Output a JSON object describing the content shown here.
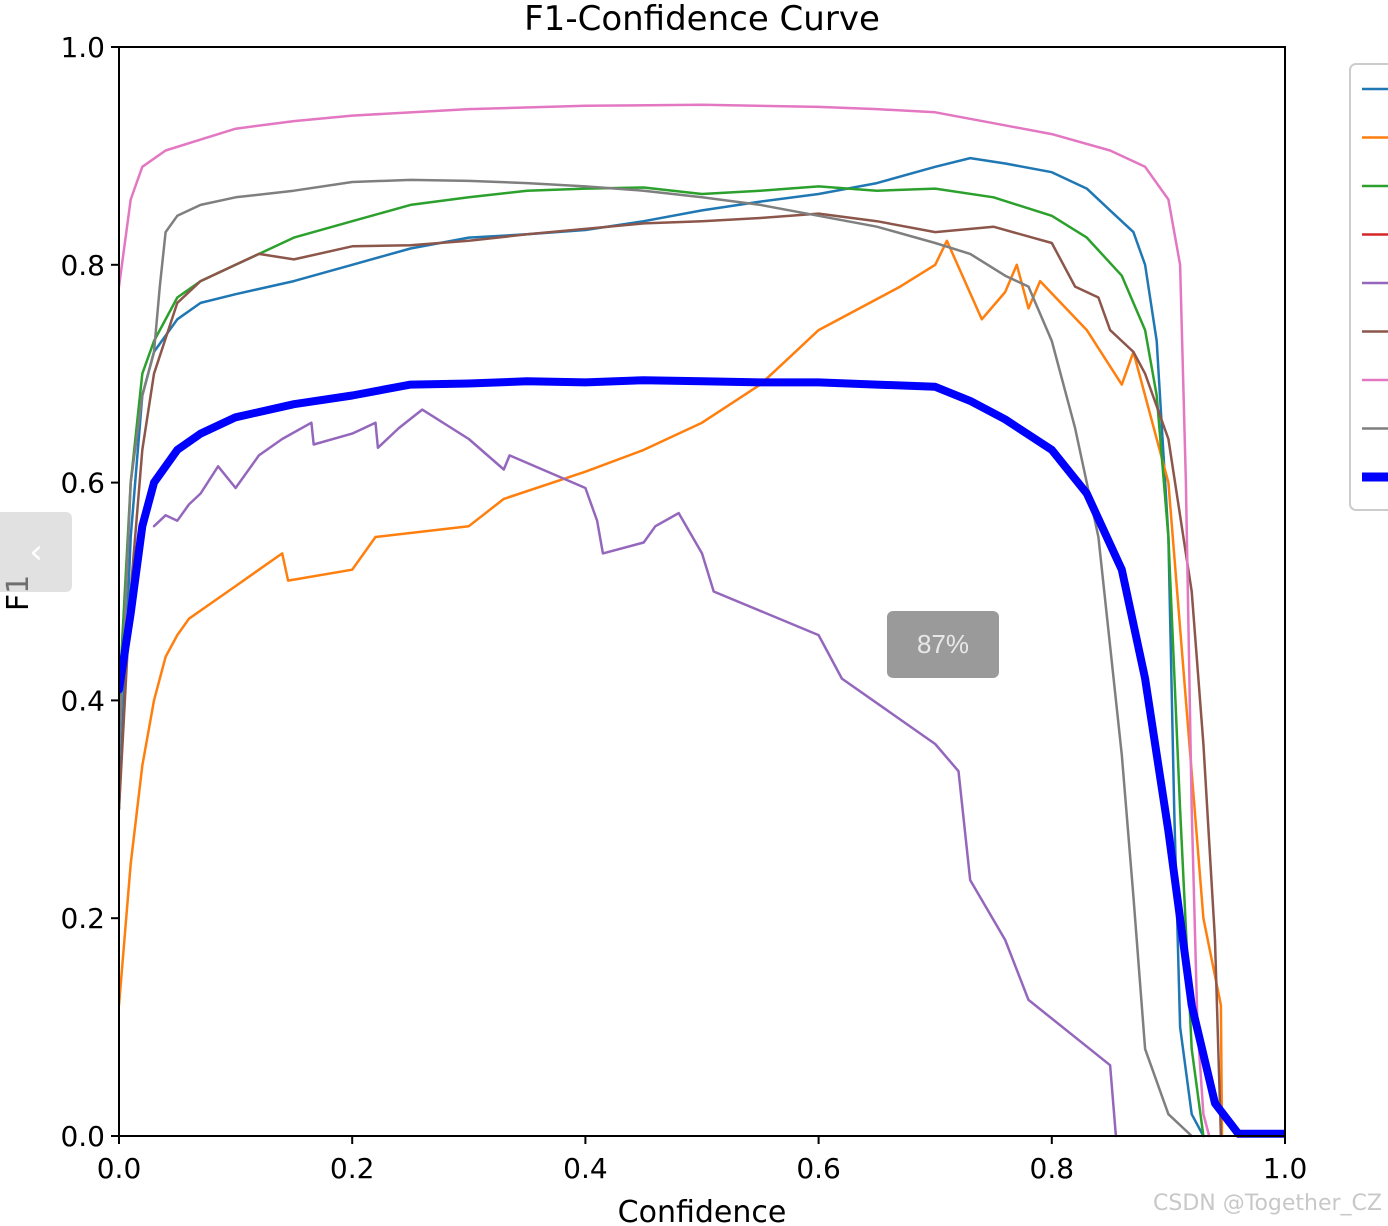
{
  "chart_data": {
    "type": "line",
    "title": "F1-Confidence Curve",
    "xlabel": "Confidence",
    "ylabel": "F1",
    "xlim": [
      0,
      1
    ],
    "ylim": [
      0,
      1
    ],
    "xticks": [
      "0.0",
      "0.2",
      "0.4",
      "0.6",
      "0.8",
      "1.0"
    ],
    "yticks": [
      "0.0",
      "0.2",
      "0.4",
      "0.6",
      "0.8",
      "1.0"
    ],
    "legend_position": "right, outside (partially cut off)",
    "series": [
      {
        "color": "#1f77b4",
        "width": 2.5,
        "points": [
          [
            0,
            0.3
          ],
          [
            0.01,
            0.55
          ],
          [
            0.02,
            0.68
          ],
          [
            0.03,
            0.72
          ],
          [
            0.05,
            0.75
          ],
          [
            0.07,
            0.765
          ],
          [
            0.1,
            0.773
          ],
          [
            0.15,
            0.785
          ],
          [
            0.2,
            0.8
          ],
          [
            0.25,
            0.815
          ],
          [
            0.3,
            0.825
          ],
          [
            0.35,
            0.828
          ],
          [
            0.4,
            0.832
          ],
          [
            0.45,
            0.84
          ],
          [
            0.5,
            0.85
          ],
          [
            0.55,
            0.858
          ],
          [
            0.6,
            0.865
          ],
          [
            0.65,
            0.875
          ],
          [
            0.7,
            0.89
          ],
          [
            0.73,
            0.898
          ],
          [
            0.76,
            0.893
          ],
          [
            0.8,
            0.885
          ],
          [
            0.83,
            0.87
          ],
          [
            0.85,
            0.85
          ],
          [
            0.87,
            0.83
          ],
          [
            0.88,
            0.8
          ],
          [
            0.89,
            0.73
          ],
          [
            0.9,
            0.55
          ],
          [
            0.905,
            0.3
          ],
          [
            0.91,
            0.1
          ],
          [
            0.92,
            0.02
          ],
          [
            0.93,
            0
          ]
        ]
      },
      {
        "color": "#ff7f0e",
        "width": 2.5,
        "points": [
          [
            0,
            0.12
          ],
          [
            0.01,
            0.25
          ],
          [
            0.02,
            0.34
          ],
          [
            0.03,
            0.4
          ],
          [
            0.04,
            0.44
          ],
          [
            0.05,
            0.46
          ],
          [
            0.06,
            0.475
          ],
          [
            0.08,
            0.49
          ],
          [
            0.1,
            0.505
          ],
          [
            0.12,
            0.52
          ],
          [
            0.14,
            0.535
          ],
          [
            0.145,
            0.51
          ],
          [
            0.2,
            0.52
          ],
          [
            0.22,
            0.55
          ],
          [
            0.3,
            0.56
          ],
          [
            0.33,
            0.585
          ],
          [
            0.4,
            0.61
          ],
          [
            0.45,
            0.63
          ],
          [
            0.5,
            0.655
          ],
          [
            0.55,
            0.69
          ],
          [
            0.58,
            0.72
          ],
          [
            0.6,
            0.74
          ],
          [
            0.67,
            0.78
          ],
          [
            0.7,
            0.8
          ],
          [
            0.71,
            0.822
          ],
          [
            0.74,
            0.75
          ],
          [
            0.76,
            0.775
          ],
          [
            0.77,
            0.8
          ],
          [
            0.78,
            0.76
          ],
          [
            0.79,
            0.785
          ],
          [
            0.83,
            0.74
          ],
          [
            0.86,
            0.69
          ],
          [
            0.87,
            0.72
          ],
          [
            0.9,
            0.6
          ],
          [
            0.93,
            0.2
          ],
          [
            0.945,
            0.12
          ],
          [
            0.946,
            0
          ]
        ]
      },
      {
        "color": "#2ca02c",
        "width": 2.5,
        "points": [
          [
            0,
            0.4
          ],
          [
            0.01,
            0.6
          ],
          [
            0.02,
            0.7
          ],
          [
            0.03,
            0.73
          ],
          [
            0.05,
            0.77
          ],
          [
            0.07,
            0.785
          ],
          [
            0.1,
            0.8
          ],
          [
            0.15,
            0.825
          ],
          [
            0.2,
            0.84
          ],
          [
            0.25,
            0.855
          ],
          [
            0.3,
            0.862
          ],
          [
            0.35,
            0.868
          ],
          [
            0.4,
            0.87
          ],
          [
            0.45,
            0.871
          ],
          [
            0.5,
            0.865
          ],
          [
            0.55,
            0.868
          ],
          [
            0.6,
            0.872
          ],
          [
            0.65,
            0.868
          ],
          [
            0.7,
            0.87
          ],
          [
            0.75,
            0.862
          ],
          [
            0.8,
            0.845
          ],
          [
            0.83,
            0.825
          ],
          [
            0.86,
            0.79
          ],
          [
            0.88,
            0.74
          ],
          [
            0.89,
            0.68
          ],
          [
            0.9,
            0.55
          ],
          [
            0.91,
            0.3
          ],
          [
            0.92,
            0.08
          ],
          [
            0.93,
            0
          ]
        ]
      },
      {
        "color": "#9467bd",
        "width": 2.5,
        "points": [
          [
            0.03,
            0.56
          ],
          [
            0.04,
            0.57
          ],
          [
            0.05,
            0.565
          ],
          [
            0.06,
            0.58
          ],
          [
            0.07,
            0.59
          ],
          [
            0.085,
            0.615
          ],
          [
            0.1,
            0.595
          ],
          [
            0.12,
            0.625
          ],
          [
            0.14,
            0.64
          ],
          [
            0.165,
            0.655
          ],
          [
            0.167,
            0.635
          ],
          [
            0.2,
            0.645
          ],
          [
            0.22,
            0.655
          ],
          [
            0.222,
            0.632
          ],
          [
            0.24,
            0.65
          ],
          [
            0.26,
            0.667
          ],
          [
            0.3,
            0.64
          ],
          [
            0.33,
            0.612
          ],
          [
            0.335,
            0.625
          ],
          [
            0.4,
            0.595
          ],
          [
            0.41,
            0.565
          ],
          [
            0.415,
            0.535
          ],
          [
            0.45,
            0.545
          ],
          [
            0.46,
            0.56
          ],
          [
            0.48,
            0.572
          ],
          [
            0.5,
            0.535
          ],
          [
            0.51,
            0.5
          ],
          [
            0.6,
            0.46
          ],
          [
            0.62,
            0.42
          ],
          [
            0.7,
            0.36
          ],
          [
            0.72,
            0.335
          ],
          [
            0.73,
            0.235
          ],
          [
            0.76,
            0.18
          ],
          [
            0.78,
            0.125
          ],
          [
            0.85,
            0.065
          ],
          [
            0.855,
            0
          ]
        ]
      },
      {
        "color": "#8c564b",
        "width": 2.5,
        "points": [
          [
            0,
            0.3
          ],
          [
            0.01,
            0.5
          ],
          [
            0.02,
            0.63
          ],
          [
            0.03,
            0.7
          ],
          [
            0.05,
            0.765
          ],
          [
            0.07,
            0.785
          ],
          [
            0.1,
            0.8
          ],
          [
            0.12,
            0.81
          ],
          [
            0.15,
            0.805
          ],
          [
            0.2,
            0.817
          ],
          [
            0.25,
            0.818
          ],
          [
            0.3,
            0.822
          ],
          [
            0.35,
            0.828
          ],
          [
            0.4,
            0.833
          ],
          [
            0.45,
            0.838
          ],
          [
            0.5,
            0.84
          ],
          [
            0.55,
            0.843
          ],
          [
            0.6,
            0.847
          ],
          [
            0.65,
            0.84
          ],
          [
            0.7,
            0.83
          ],
          [
            0.75,
            0.835
          ],
          [
            0.8,
            0.82
          ],
          [
            0.82,
            0.78
          ],
          [
            0.84,
            0.77
          ],
          [
            0.85,
            0.74
          ],
          [
            0.86,
            0.73
          ],
          [
            0.87,
            0.72
          ],
          [
            0.88,
            0.7
          ],
          [
            0.9,
            0.64
          ],
          [
            0.92,
            0.5
          ],
          [
            0.93,
            0.36
          ],
          [
            0.94,
            0.18
          ],
          [
            0.945,
            0
          ]
        ]
      },
      {
        "color": "#e377c2",
        "width": 2.5,
        "points": [
          [
            0,
            0.78
          ],
          [
            0.01,
            0.86
          ],
          [
            0.02,
            0.89
          ],
          [
            0.04,
            0.905
          ],
          [
            0.07,
            0.915
          ],
          [
            0.1,
            0.925
          ],
          [
            0.15,
            0.932
          ],
          [
            0.2,
            0.937
          ],
          [
            0.3,
            0.943
          ],
          [
            0.4,
            0.946
          ],
          [
            0.5,
            0.947
          ],
          [
            0.6,
            0.945
          ],
          [
            0.65,
            0.943
          ],
          [
            0.7,
            0.94
          ],
          [
            0.75,
            0.93
          ],
          [
            0.8,
            0.92
          ],
          [
            0.85,
            0.905
          ],
          [
            0.88,
            0.89
          ],
          [
            0.9,
            0.86
          ],
          [
            0.91,
            0.8
          ],
          [
            0.915,
            0.6
          ],
          [
            0.92,
            0.3
          ],
          [
            0.925,
            0.1
          ],
          [
            0.93,
            0.02
          ],
          [
            0.935,
            0
          ]
        ]
      },
      {
        "color": "#7f7f7f",
        "width": 2.5,
        "points": [
          [
            0,
            0.35
          ],
          [
            0.01,
            0.6
          ],
          [
            0.02,
            0.68
          ],
          [
            0.03,
            0.72
          ],
          [
            0.035,
            0.78
          ],
          [
            0.04,
            0.83
          ],
          [
            0.05,
            0.845
          ],
          [
            0.07,
            0.855
          ],
          [
            0.1,
            0.862
          ],
          [
            0.15,
            0.868
          ],
          [
            0.2,
            0.876
          ],
          [
            0.25,
            0.878
          ],
          [
            0.3,
            0.877
          ],
          [
            0.35,
            0.875
          ],
          [
            0.4,
            0.872
          ],
          [
            0.45,
            0.868
          ],
          [
            0.5,
            0.862
          ],
          [
            0.55,
            0.855
          ],
          [
            0.6,
            0.845
          ],
          [
            0.65,
            0.835
          ],
          [
            0.7,
            0.82
          ],
          [
            0.73,
            0.81
          ],
          [
            0.76,
            0.79
          ],
          [
            0.78,
            0.78
          ],
          [
            0.8,
            0.73
          ],
          [
            0.82,
            0.65
          ],
          [
            0.84,
            0.55
          ],
          [
            0.85,
            0.45
          ],
          [
            0.86,
            0.35
          ],
          [
            0.87,
            0.22
          ],
          [
            0.88,
            0.08
          ],
          [
            0.9,
            0.02
          ],
          [
            0.92,
            0
          ]
        ]
      },
      {
        "color": "#0000ff",
        "width": 8,
        "points": [
          [
            0,
            0.41
          ],
          [
            0.01,
            0.48
          ],
          [
            0.02,
            0.56
          ],
          [
            0.03,
            0.6
          ],
          [
            0.05,
            0.63
          ],
          [
            0.07,
            0.645
          ],
          [
            0.1,
            0.66
          ],
          [
            0.15,
            0.672
          ],
          [
            0.2,
            0.68
          ],
          [
            0.25,
            0.69
          ],
          [
            0.3,
            0.691
          ],
          [
            0.35,
            0.693
          ],
          [
            0.4,
            0.692
          ],
          [
            0.45,
            0.694
          ],
          [
            0.5,
            0.693
          ],
          [
            0.55,
            0.692
          ],
          [
            0.6,
            0.692
          ],
          [
            0.65,
            0.69
          ],
          [
            0.7,
            0.688
          ],
          [
            0.73,
            0.675
          ],
          [
            0.76,
            0.658
          ],
          [
            0.8,
            0.63
          ],
          [
            0.83,
            0.59
          ],
          [
            0.86,
            0.52
          ],
          [
            0.88,
            0.42
          ],
          [
            0.9,
            0.28
          ],
          [
            0.92,
            0.12
          ],
          [
            0.94,
            0.03
          ],
          [
            0.96,
            0.002
          ],
          [
            1.0,
            0.002
          ]
        ]
      }
    ]
  },
  "overlay": {
    "zoom_badge": "87%",
    "watermark": "CSDN @Together_CZ",
    "nav_prev_icon": "‹"
  }
}
